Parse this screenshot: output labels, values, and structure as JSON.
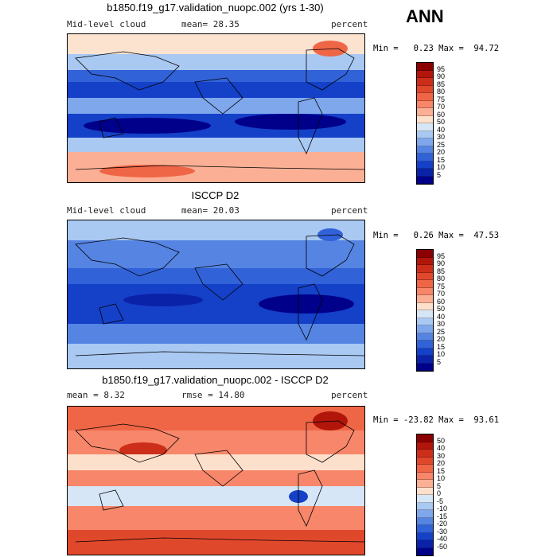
{
  "season": "ANN",
  "panels": [
    {
      "title": "b1850.f19_g17.validation_nuopc.002 (yrs 1-30)",
      "left": "Mid-level cloud",
      "middle": "mean=  28.35",
      "right": "percent",
      "minmax": "Min =   0.23 Max =  94.72",
      "levels": [
        "95",
        "90",
        "85",
        "80",
        "75",
        "70",
        "60",
        "50",
        "40",
        "30",
        "25",
        "20",
        "15",
        "10",
        "5"
      ],
      "colors": [
        "#8b0000",
        "#b2160a",
        "#cc2e1a",
        "#e0482c",
        "#ef6647",
        "#f7866a",
        "#fbb095",
        "#fde0cc",
        "#d6e6f7",
        "#a9c8f2",
        "#7ea7ec",
        "#5584e2",
        "#3262d8",
        "#1540c8",
        "#0a22a8",
        "#00008b"
      ]
    },
    {
      "title": "ISCCP D2",
      "left": "Mid-level cloud",
      "middle": "mean=  20.03",
      "right": "percent",
      "minmax": "Min =   0.26 Max =  47.53",
      "levels": [
        "95",
        "90",
        "85",
        "80",
        "75",
        "70",
        "60",
        "50",
        "40",
        "30",
        "25",
        "20",
        "15",
        "10",
        "5"
      ],
      "colors": [
        "#8b0000",
        "#b2160a",
        "#cc2e1a",
        "#e0482c",
        "#ef6647",
        "#f7866a",
        "#fbb095",
        "#fde0cc",
        "#d6e6f7",
        "#a9c8f2",
        "#7ea7ec",
        "#5584e2",
        "#3262d8",
        "#1540c8",
        "#0a22a8",
        "#00008b"
      ]
    },
    {
      "title": "b1850.f19_g17.validation_nuopc.002 - ISCCP D2",
      "left": "mean =   8.32",
      "middle": "rmse =  14.80",
      "right": "percent",
      "minmax": "Min = -23.82 Max =  93.61",
      "levels": [
        "50",
        "40",
        "30",
        "20",
        "15",
        "10",
        "5",
        "0",
        "-5",
        "-10",
        "-15",
        "-20",
        "-30",
        "-40",
        "-50"
      ],
      "colors": [
        "#8b0000",
        "#b2160a",
        "#cc2e1a",
        "#e0482c",
        "#ef6647",
        "#f7866a",
        "#fbb095",
        "#fde0cc",
        "#d6e6f7",
        "#a9c8f2",
        "#7ea7ec",
        "#5584e2",
        "#3262d8",
        "#1540c8",
        "#0a22a8",
        "#00008b"
      ]
    }
  ]
}
